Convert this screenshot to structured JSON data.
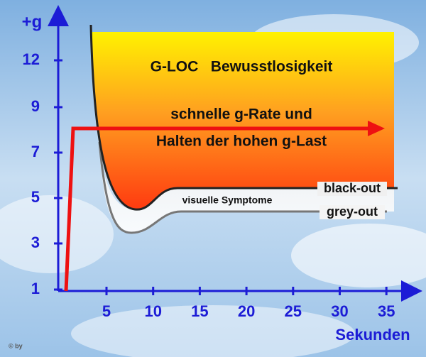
{
  "axis": {
    "y_title": "+g",
    "y_ticks": [
      "1",
      "3",
      "5",
      "7",
      "9",
      "12"
    ],
    "x_title": "Sekunden",
    "x_ticks": [
      "5",
      "10",
      "15",
      "20",
      "25",
      "30",
      "35"
    ]
  },
  "labels": {
    "zone": "G-LOC   Bewusstlosigkeit",
    "rate_1": "schnelle g-Rate und",
    "rate_2": "Halten der hohen g-Last",
    "black_out": "black-out",
    "visual": "visuelle Symptome",
    "grey_out": "grey-out",
    "copyright": "© by"
  }
}
